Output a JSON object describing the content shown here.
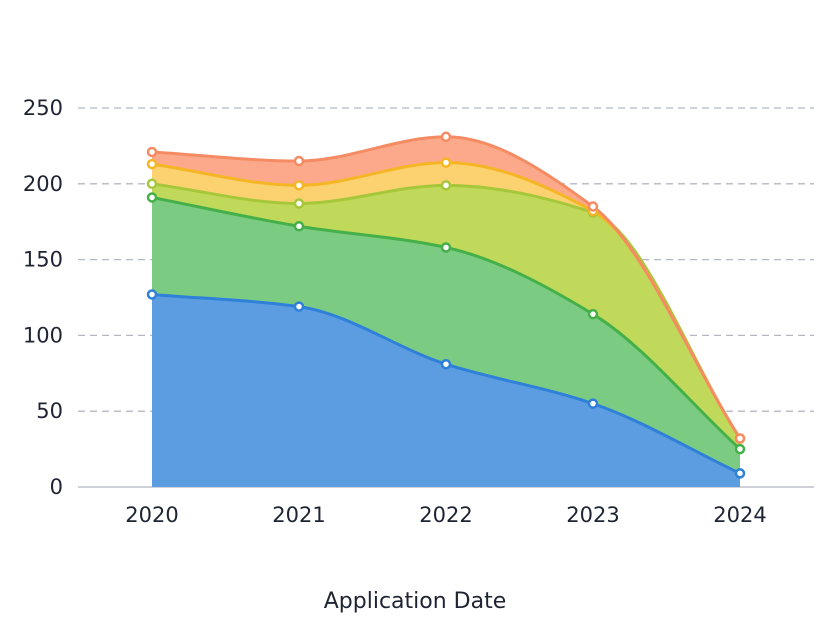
{
  "chart_data": {
    "type": "area",
    "stacked": true,
    "smooth": true,
    "title": "",
    "xlabel": "Application Date",
    "ylabel": "",
    "categories": [
      "2020",
      "2021",
      "2022",
      "2023",
      "2024"
    ],
    "ylim": [
      0,
      250
    ],
    "yticks": [
      "0",
      "50",
      "100",
      "150",
      "200",
      "250"
    ],
    "grid": true,
    "legend": "none",
    "series": [
      {
        "values": [
          127,
          119,
          81,
          55,
          9
        ],
        "color": "#2f80d9",
        "fill": "#5b9de0"
      },
      {
        "values": [
          64,
          53,
          77,
          59,
          16
        ],
        "color": "#45b04a",
        "fill": "#7bcc82"
      },
      {
        "values": [
          9,
          15,
          41,
          67,
          7
        ],
        "color": "#a6c73a",
        "fill": "#c0d95a"
      },
      {
        "values": [
          13,
          12,
          15,
          1,
          0
        ],
        "color": "#f5b626",
        "fill": "#fcd271"
      },
      {
        "values": [
          8,
          16,
          17,
          3,
          0
        ],
        "color": "#f58b63",
        "fill": "#fba98a"
      }
    ]
  }
}
